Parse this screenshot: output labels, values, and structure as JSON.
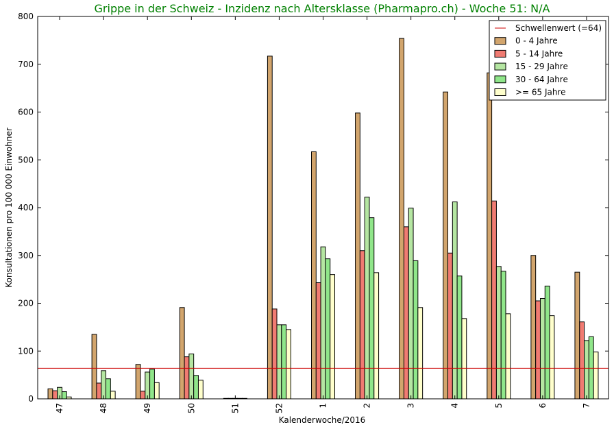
{
  "chart_data": {
    "type": "bar",
    "title": "Grippe in der Schweiz - Inzidenz nach Altersklasse (Pharmapro.ch) - Woche 51: N/A",
    "title_color": "#008000",
    "xlabel": "Kalenderwoche/2016",
    "ylabel": "Konsultationen pro 100 000 Einwohner",
    "ylim": [
      0,
      800
    ],
    "yticks": [
      "0",
      "100",
      "200",
      "300",
      "400",
      "500",
      "600",
      "700",
      "800"
    ],
    "categories": [
      "47",
      "48",
      "49",
      "50",
      "51",
      "52",
      "1",
      "2",
      "3",
      "4",
      "5",
      "6",
      "7"
    ],
    "threshold": {
      "name": "Schwellenwert (=64)",
      "value": 64,
      "color": "#cc0000"
    },
    "legend_position": "top-right",
    "grid": false,
    "series": [
      {
        "name": "0 - 4 Jahre",
        "color": "#d2a56d",
        "values": [
          21,
          135,
          72,
          191,
          1,
          717,
          517,
          598,
          754,
          642,
          682,
          300,
          265
        ]
      },
      {
        "name": "5 - 14 Jahre",
        "color": "#f07b72",
        "values": [
          17,
          33,
          16,
          88,
          1,
          188,
          243,
          310,
          360,
          305,
          414,
          205,
          161
        ]
      },
      {
        "name": "15 - 29 Jahre",
        "color": "#b5e6a2",
        "values": [
          24,
          59,
          56,
          94,
          1,
          155,
          318,
          422,
          399,
          412,
          277,
          210,
          122
        ]
      },
      {
        "name": "30 - 64 Jahre",
        "color": "#90e68a",
        "values": [
          15,
          42,
          62,
          49,
          1,
          155,
          293,
          379,
          289,
          257,
          267,
          236,
          130
        ]
      },
      {
        "name": ">= 65 Jahre",
        "color": "#ffffcc",
        "values": [
          4,
          16,
          34,
          39,
          1,
          145,
          260,
          264,
          191,
          168,
          178,
          174,
          98
        ]
      }
    ]
  }
}
